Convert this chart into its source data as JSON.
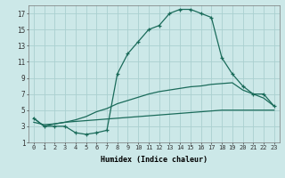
{
  "xlabel": "Humidex (Indice chaleur)",
  "bg_color": "#cce8e8",
  "line_color": "#1a6b5a",
  "grid_color": "#aad0d0",
  "xlim": [
    -0.5,
    23.5
  ],
  "ylim": [
    1,
    18
  ],
  "xticks": [
    0,
    1,
    2,
    3,
    4,
    5,
    6,
    7,
    8,
    9,
    10,
    11,
    12,
    13,
    14,
    15,
    16,
    17,
    18,
    19,
    20,
    21,
    22,
    23
  ],
  "yticks": [
    1,
    3,
    5,
    7,
    9,
    11,
    13,
    15,
    17
  ],
  "line_main_x": [
    0,
    1,
    2,
    3,
    4,
    5,
    6,
    7,
    8,
    9,
    10,
    11,
    12,
    13,
    14,
    15,
    16,
    17,
    18,
    19,
    20,
    21,
    22,
    23
  ],
  "line_main_y": [
    4,
    3,
    3,
    3,
    2.2,
    2,
    2.2,
    2.5,
    9.5,
    12,
    13.5,
    15,
    15.5,
    17,
    17.5,
    17.5,
    17,
    16.5,
    11.5,
    9.5,
    8,
    7,
    7,
    5.5
  ],
  "line_upper_x": [
    0,
    1,
    2,
    3,
    4,
    5,
    6,
    7,
    8,
    9,
    10,
    11,
    12,
    13,
    14,
    15,
    16,
    17,
    18,
    19,
    20,
    21,
    22,
    23
  ],
  "line_upper_y": [
    4,
    3,
    3.3,
    3.5,
    3.8,
    4.2,
    4.8,
    5.2,
    5.8,
    6.2,
    6.6,
    7.0,
    7.3,
    7.5,
    7.7,
    7.9,
    8.0,
    8.2,
    8.3,
    8.4,
    7.5,
    7.0,
    6.5,
    5.5
  ],
  "line_lower_x": [
    0,
    1,
    2,
    3,
    4,
    5,
    6,
    7,
    8,
    9,
    10,
    11,
    12,
    13,
    14,
    15,
    16,
    17,
    18,
    19,
    20,
    21,
    22,
    23
  ],
  "line_lower_y": [
    3.5,
    3.2,
    3.3,
    3.5,
    3.6,
    3.7,
    3.8,
    3.9,
    4.0,
    4.1,
    4.2,
    4.3,
    4.4,
    4.5,
    4.6,
    4.7,
    4.8,
    4.9,
    5.0,
    5.0,
    5.0,
    5.0,
    5.0,
    5.0
  ]
}
